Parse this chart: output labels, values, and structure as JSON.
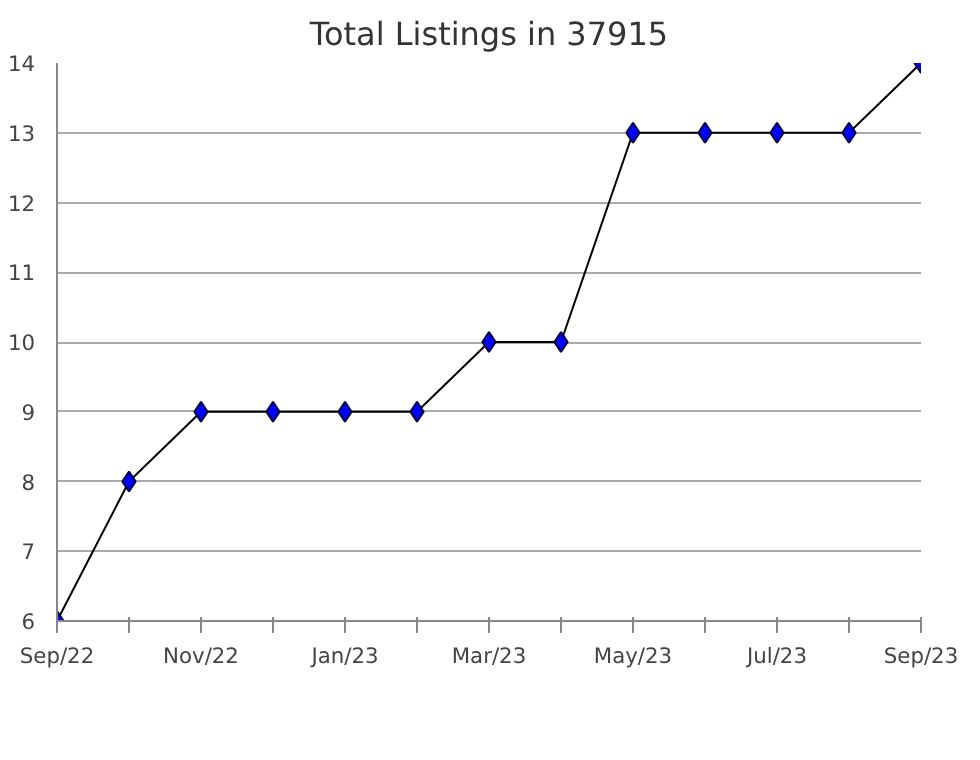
{
  "chart_data": {
    "type": "line",
    "title": "Total Listings in 37915",
    "categories": [
      "Sep/22",
      null,
      "Nov/22",
      null,
      "Jan/23",
      null,
      "Mar/23",
      null,
      "May/23",
      null,
      "Jul/23",
      null,
      "Sep/23"
    ],
    "series": [
      {
        "color": "#0000ff",
        "values": [
          6,
          8,
          9,
          9,
          9,
          9,
          10,
          10,
          13,
          13,
          13,
          13,
          14
        ]
      }
    ],
    "ylim": [
      6,
      14
    ],
    "yticks": [
      6,
      7,
      8,
      9,
      10,
      11,
      12,
      13,
      14
    ],
    "grid": "y",
    "marker": "diamond",
    "line_style": "solid"
  }
}
